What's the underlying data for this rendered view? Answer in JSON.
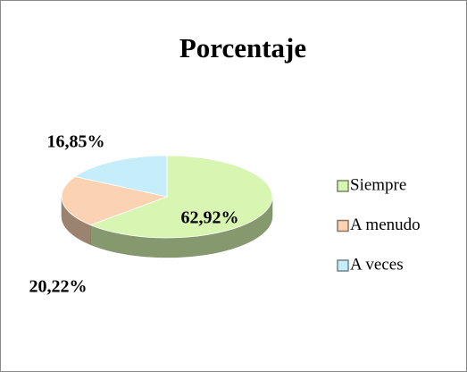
{
  "chart_data": {
    "type": "pie",
    "title": "Porcentaje",
    "categories": [
      "Siempre",
      "A menudo",
      "A veces"
    ],
    "values": [
      62.92,
      20.22,
      16.85
    ],
    "value_labels": [
      "62,92%",
      "20,22%",
      "16,85%"
    ],
    "colors": [
      "#d8f5b2",
      "#fbd3b3",
      "#c6eefa"
    ],
    "legend": "right"
  }
}
